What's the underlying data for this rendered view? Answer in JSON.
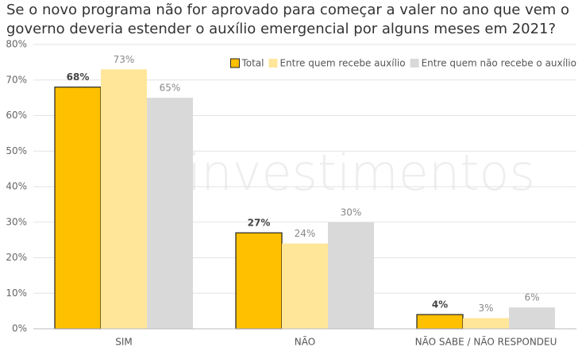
{
  "chart_data": {
    "type": "bar",
    "title": [
      "Se o novo programa não for aprovado para começar a valer no ano que vem o",
      "governo deveria estender o auxílio emergencial por alguns meses em 2021?"
    ],
    "watermark": "investimentos",
    "categories": [
      "SIM",
      "NÃO",
      "NÃO SABE / NÃO RESPONDEU"
    ],
    "series": [
      {
        "name": "Total",
        "color": "#FFC000",
        "values": [
          68,
          27,
          4
        ],
        "value_labels": [
          "68%",
          "27%",
          "4%"
        ]
      },
      {
        "name": "Entre quem recebe auxílio",
        "color": "#FFE699",
        "values": [
          73,
          24,
          3
        ],
        "value_labels": [
          "73%",
          "24%",
          "3%"
        ]
      },
      {
        "name": "Entre quem não recebe o auxílio",
        "color": "#D9D9D9",
        "values": [
          65,
          30,
          6
        ],
        "value_labels": [
          "65%",
          "30%",
          "6%"
        ]
      }
    ],
    "ylim": [
      0,
      80
    ],
    "yticks": [
      {
        "value": 0,
        "label": "0%"
      },
      {
        "value": 10,
        "label": "10%"
      },
      {
        "value": 20,
        "label": "20%"
      },
      {
        "value": 30,
        "label": "30%"
      },
      {
        "value": 40,
        "label": "40%"
      },
      {
        "value": 50,
        "label": "50%"
      },
      {
        "value": 60,
        "label": "60%"
      },
      {
        "value": 70,
        "label": "70%"
      },
      {
        "value": 80,
        "label": "80%"
      }
    ],
    "grid": true,
    "legend": "top-right"
  }
}
